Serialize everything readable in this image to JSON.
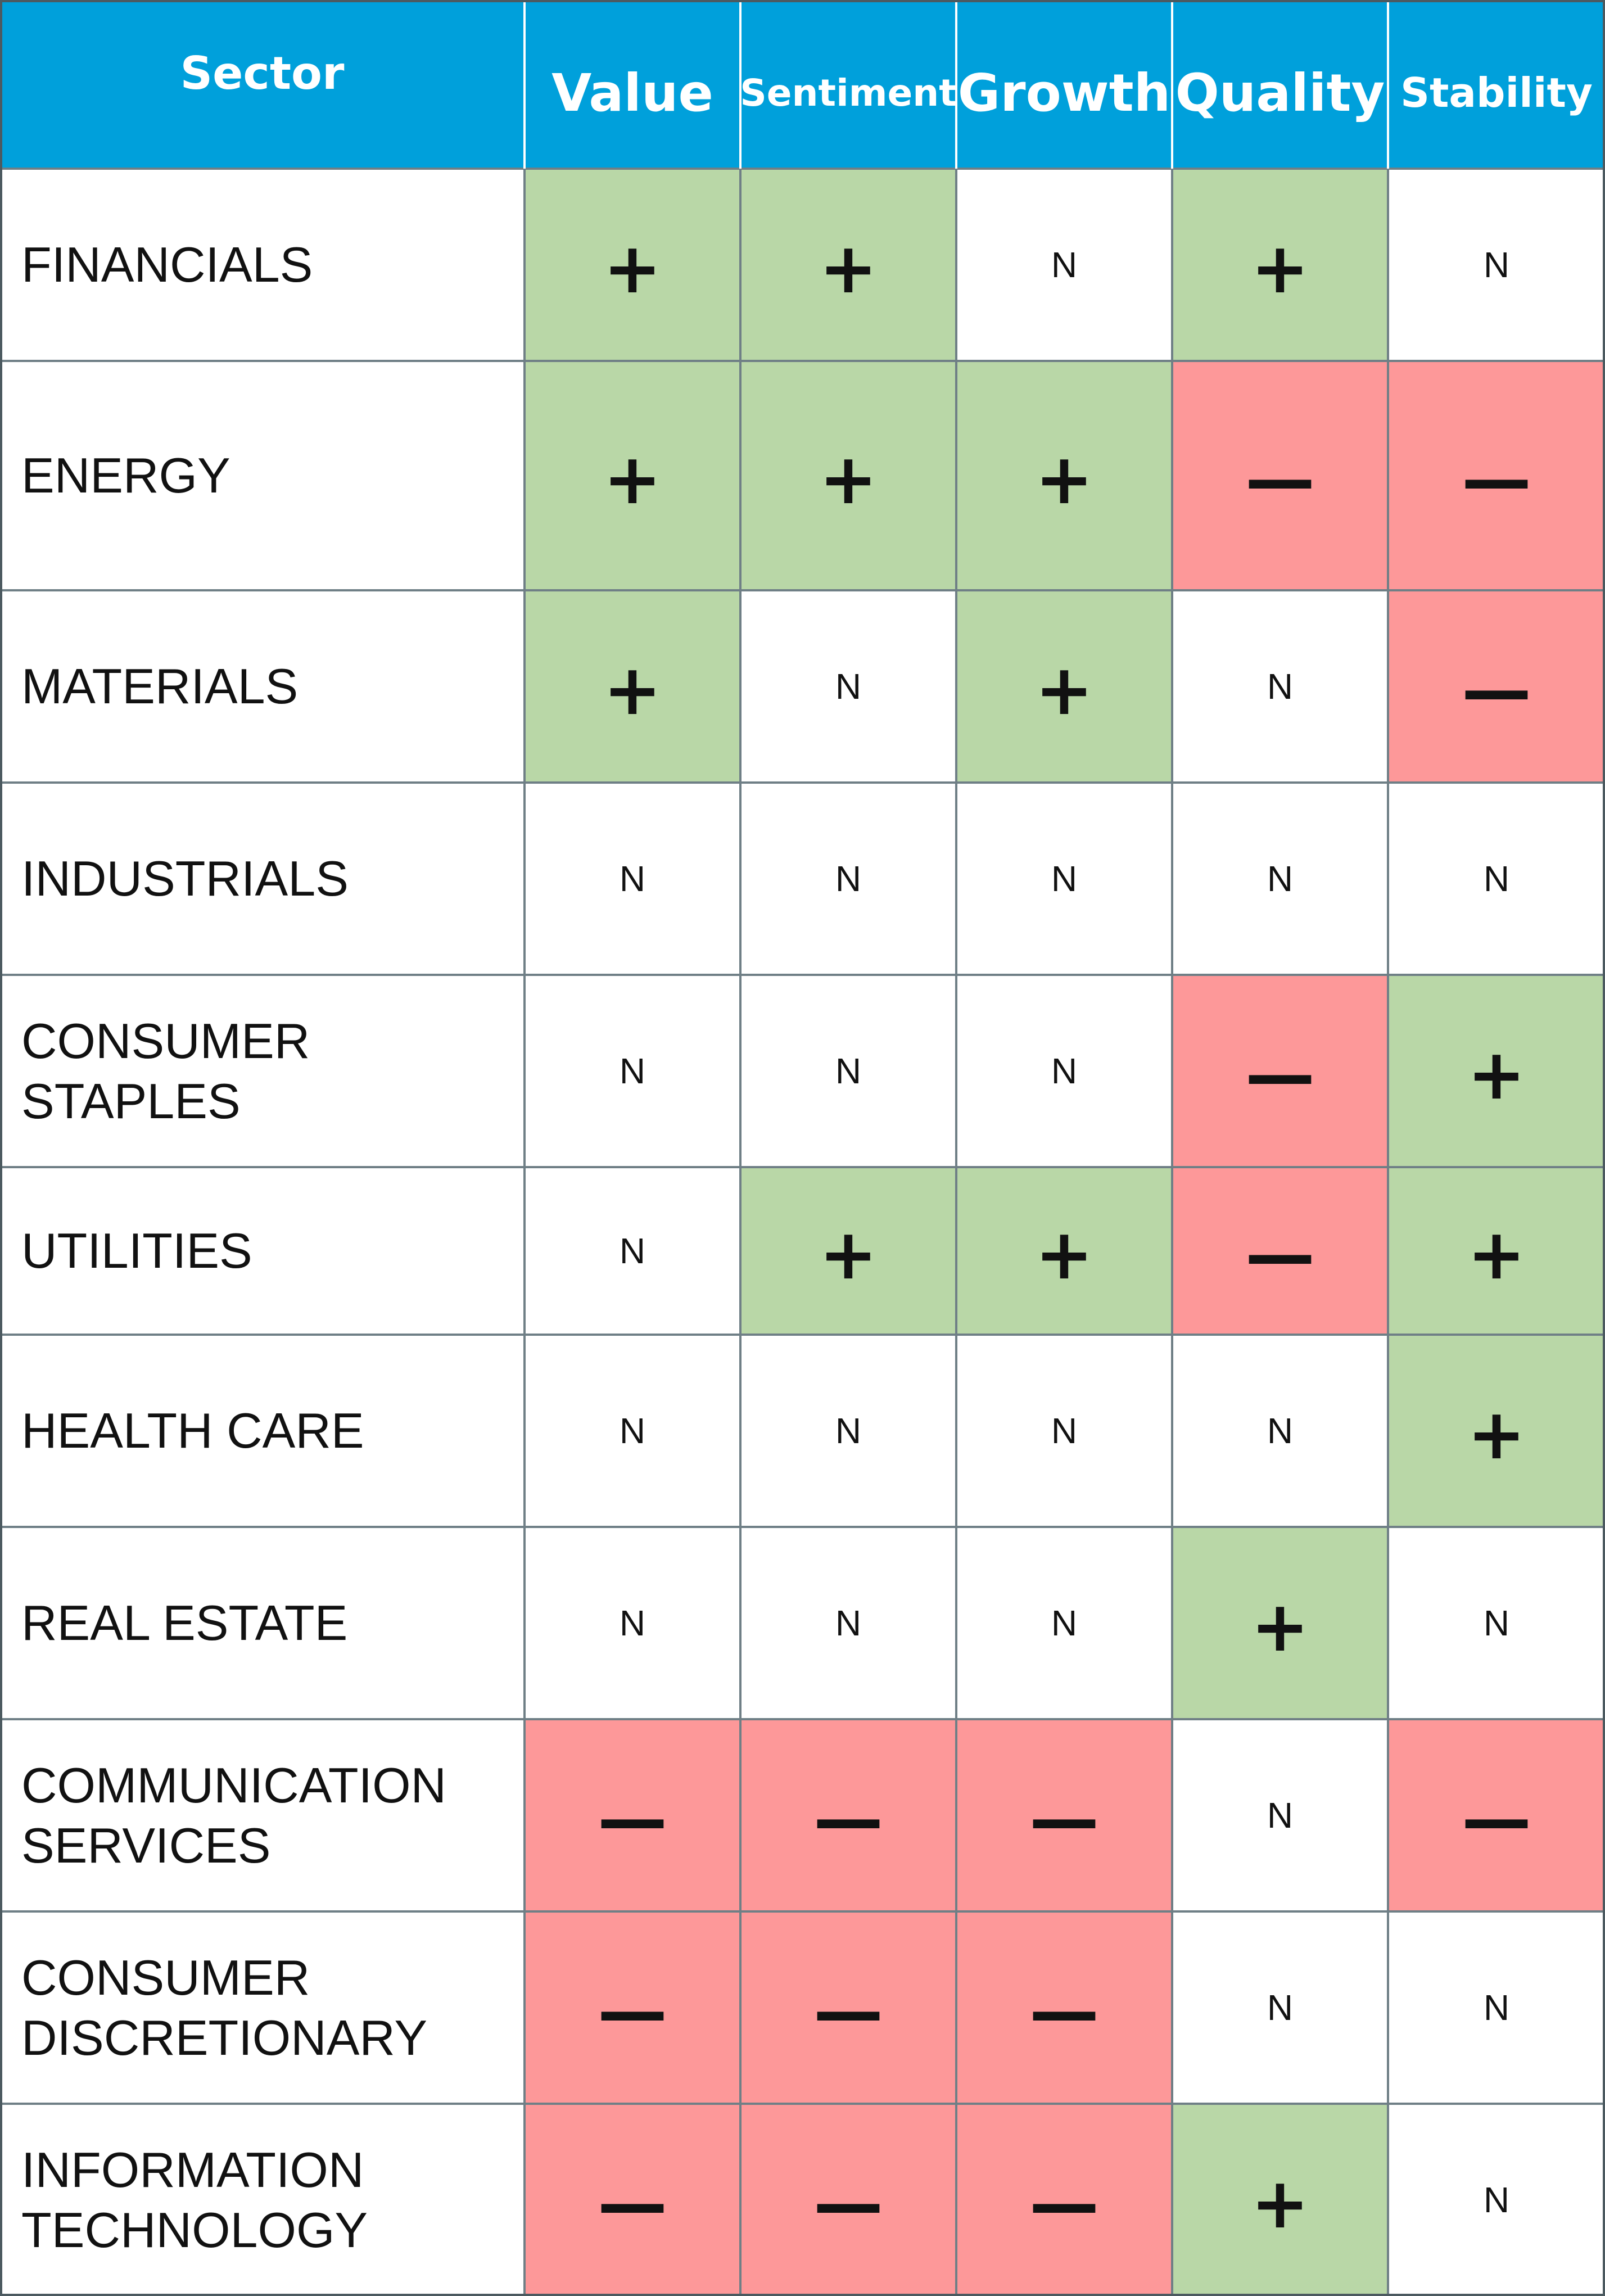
{
  "chart_data": {
    "type": "table",
    "columns": [
      "Sector",
      "Value",
      "Sentiment",
      "Growth",
      "Quality",
      "Stability"
    ],
    "rows": [
      {
        "sector": "FINANCIALS",
        "values": [
          "+",
          "+",
          "N",
          "+",
          "N"
        ]
      },
      {
        "sector": "ENERGY",
        "values": [
          "+",
          "+",
          "+",
          "—",
          "—"
        ]
      },
      {
        "sector": "MATERIALS",
        "values": [
          "+",
          "N",
          "+",
          "N",
          "—"
        ]
      },
      {
        "sector": "INDUSTRIALS",
        "values": [
          "N",
          "N",
          "N",
          "N",
          "N"
        ]
      },
      {
        "sector": "CONSUMER\nSTAPLES",
        "values": [
          "N",
          "N",
          "N",
          "—",
          "+"
        ]
      },
      {
        "sector": "UTILITIES",
        "values": [
          "N",
          "+",
          "+",
          "—",
          "+"
        ]
      },
      {
        "sector": "HEALTH CARE",
        "values": [
          "N",
          "N",
          "N",
          "N",
          "+"
        ]
      },
      {
        "sector": "REAL ESTATE",
        "values": [
          "N",
          "N",
          "N",
          "+",
          "N"
        ]
      },
      {
        "sector": "COMMUNICATION\nSERVICES",
        "values": [
          "—",
          "—",
          "—",
          "N",
          "—"
        ]
      },
      {
        "sector": "CONSUMER\nDISCRETIONARY",
        "values": [
          "—",
          "—",
          "—",
          "N",
          "N"
        ]
      },
      {
        "sector": "INFORMATION\nTECHNOLOGY",
        "values": [
          "—",
          "—",
          "—",
          "+",
          "N"
        ]
      }
    ]
  },
  "colors": {
    "header_background": "#00a0db",
    "header_text": "#ffffff",
    "positive": "#b9d7a7",
    "negative": "#fd9899",
    "neutral": "#ffffff",
    "grid": "#6f7f86"
  }
}
